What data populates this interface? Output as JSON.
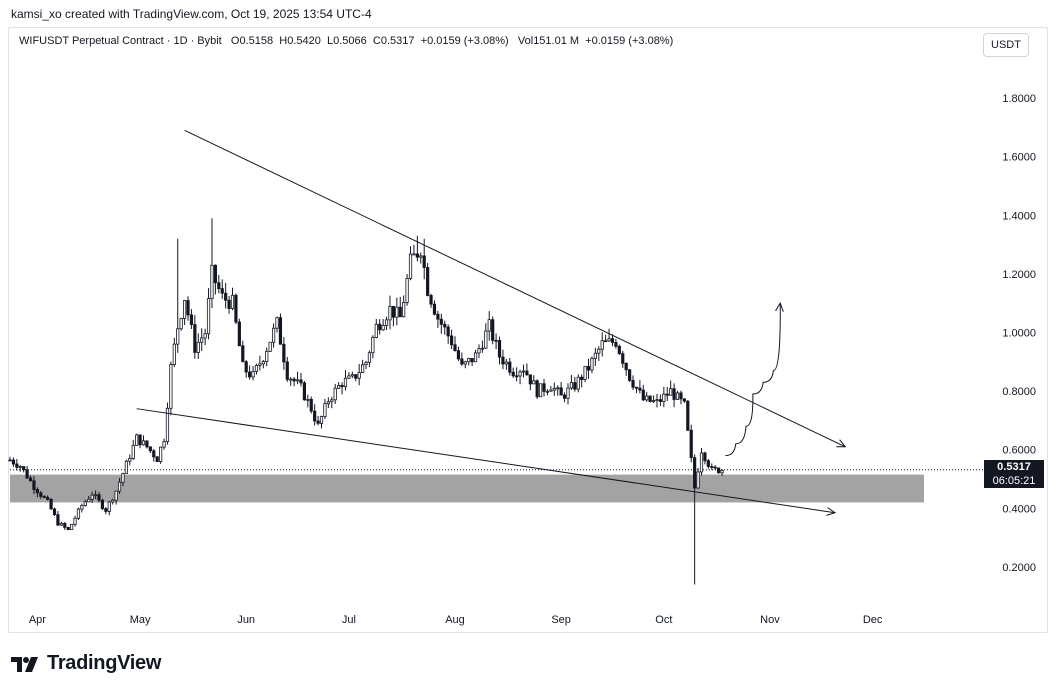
{
  "attribution": "kamsi_xo created with TradingView.com, Oct 19, 2025 13:54 UTC-4",
  "legend": {
    "symbol": "WIFUSDT Perpetual Contract · 1D · Bybit",
    "open_label": "O",
    "open": "0.5158",
    "high_label": "H",
    "high": "0.5420",
    "low_label": "L",
    "low": "0.5066",
    "close_label": "C",
    "close": "0.5317",
    "change": "+0.0159 (+3.08%)",
    "vol_label": "Vol",
    "volume": "151.01 M",
    "vol_change": "+0.0159 (+3.08%)"
  },
  "currency_button": "USDT",
  "last_price": "0.5317",
  "countdown": "06:05:21",
  "brand": "TradingView",
  "colors": {
    "candle": "#131722",
    "zone": "#9e9e9e",
    "line": "#131722",
    "axis_text": "#131722",
    "frame": "#e0e3eb"
  },
  "chart_data": {
    "type": "candlestick",
    "y_axis_ticks": [
      "1.8000",
      "1.6000",
      "1.4000",
      "1.2000",
      "1.0000",
      "0.8000",
      "0.6000",
      "0.4000",
      "0.2000"
    ],
    "x_axis_ticks": [
      "Apr",
      "May",
      "Jun",
      "Jul",
      "Aug",
      "Sep",
      "Oct",
      "Nov",
      "Dec"
    ],
    "ylim": [
      0.07,
      1.93
    ],
    "x_domain": [
      "2025-03-24",
      "2025-12-16"
    ],
    "support_zone": {
      "from": 0.42,
      "to": 0.515
    },
    "current_price": 0.5317,
    "trendlines": [
      {
        "name": "upper",
        "from": [
          "2025-05-14",
          1.69
        ],
        "to": [
          "2025-11-23",
          0.61
        ],
        "arrow": true
      },
      {
        "name": "lower",
        "from": [
          "2025-04-30",
          0.74
        ],
        "to": [
          "2025-11-20",
          0.385
        ],
        "arrow": true
      }
    ],
    "projection_path": [
      [
        "2025-10-19",
        0.58
      ],
      [
        "2025-10-22",
        0.62
      ],
      [
        "2025-10-25",
        0.68
      ],
      [
        "2025-10-27",
        0.79
      ],
      [
        "2025-10-30",
        0.83
      ],
      [
        "2025-11-02",
        0.87
      ],
      [
        "2025-11-04",
        1.1
      ]
    ],
    "price_path": [
      [
        "2025-03-24",
        0.565
      ],
      [
        "2025-03-27",
        0.545
      ],
      [
        "2025-03-31",
        0.475
      ],
      [
        "2025-04-04",
        0.42
      ],
      [
        "2025-04-07",
        0.35
      ],
      [
        "2025-04-10",
        0.325
      ],
      [
        "2025-04-14",
        0.41
      ],
      [
        "2025-04-17",
        0.45
      ],
      [
        "2025-04-21",
        0.395
      ],
      [
        "2025-04-24",
        0.46
      ],
      [
        "2025-04-27",
        0.55
      ],
      [
        "2025-04-30",
        0.64
      ],
      [
        "2025-05-03",
        0.61
      ],
      [
        "2025-05-06",
        0.57
      ],
      [
        "2025-05-08",
        0.64
      ],
      [
        "2025-05-10",
        0.88
      ],
      [
        "2025-05-12",
        1.02
      ],
      [
        "2025-05-14",
        1.12
      ],
      [
        "2025-05-17",
        0.95
      ],
      [
        "2025-05-20",
        1.0
      ],
      [
        "2025-05-22",
        1.2
      ],
      [
        "2025-05-25",
        1.12
      ],
      [
        "2025-05-28",
        1.1
      ],
      [
        "2025-05-31",
        0.88
      ],
      [
        "2025-06-03",
        0.85
      ],
      [
        "2025-06-06",
        0.92
      ],
      [
        "2025-06-10",
        1.03
      ],
      [
        "2025-06-13",
        0.86
      ],
      [
        "2025-06-17",
        0.81
      ],
      [
        "2025-06-20",
        0.74
      ],
      [
        "2025-06-22",
        0.68
      ],
      [
        "2025-06-25",
        0.77
      ],
      [
        "2025-06-29",
        0.83
      ],
      [
        "2025-07-02",
        0.84
      ],
      [
        "2025-07-06",
        0.9
      ],
      [
        "2025-07-09",
        1.02
      ],
      [
        "2025-07-13",
        1.08
      ],
      [
        "2025-07-16",
        1.05
      ],
      [
        "2025-07-19",
        1.24
      ],
      [
        "2025-07-22",
        1.29
      ],
      [
        "2025-07-24",
        1.15
      ],
      [
        "2025-07-27",
        1.05
      ],
      [
        "2025-07-31",
        0.97
      ],
      [
        "2025-08-03",
        0.88
      ],
      [
        "2025-08-07",
        0.92
      ],
      [
        "2025-08-11",
        1.02
      ],
      [
        "2025-08-14",
        0.92
      ],
      [
        "2025-08-18",
        0.87
      ],
      [
        "2025-08-21",
        0.88
      ],
      [
        "2025-08-25",
        0.8
      ],
      [
        "2025-08-29",
        0.82
      ],
      [
        "2025-09-01",
        0.78
      ],
      [
        "2025-09-05",
        0.82
      ],
      [
        "2025-09-09",
        0.88
      ],
      [
        "2025-09-13",
        0.96
      ],
      [
        "2025-09-17",
        0.97
      ],
      [
        "2025-09-21",
        0.85
      ],
      [
        "2025-09-25",
        0.77
      ],
      [
        "2025-09-29",
        0.76
      ],
      [
        "2025-10-03",
        0.8
      ],
      [
        "2025-10-07",
        0.75
      ],
      [
        "2025-10-10",
        0.47
      ],
      [
        "2025-10-12",
        0.6
      ],
      [
        "2025-10-15",
        0.53
      ],
      [
        "2025-10-18",
        0.5317
      ]
    ],
    "notable_wicks": [
      [
        "2025-05-12",
        1.32
      ],
      [
        "2025-05-22",
        1.39
      ],
      [
        "2025-07-21",
        1.33
      ],
      [
        "2025-07-23",
        1.32
      ],
      [
        "2025-10-10",
        0.14
      ]
    ]
  }
}
